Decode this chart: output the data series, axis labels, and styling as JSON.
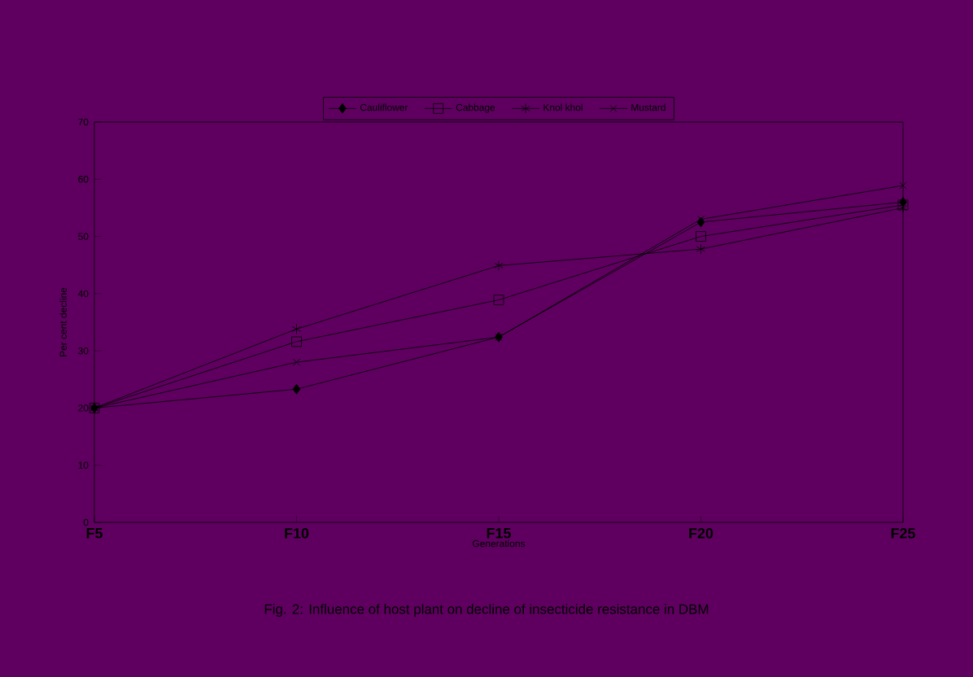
{
  "chart_data": {
    "type": "line",
    "title": "Fig. 2: Influence of host plant on decline of insecticide resistance in DBM",
    "xlabel": "Generations",
    "ylabel": "Per cent decline",
    "categories": [
      "F5",
      "F10",
      "F15",
      "F20",
      "F25"
    ],
    "series": [
      {
        "name": "Cauliflower",
        "color": "#000000",
        "marker": "diamond",
        "values": [
          20,
          23.3,
          32.4,
          52.5,
          56
        ]
      },
      {
        "name": "Cabbage",
        "color": "#000000",
        "marker": "square",
        "values": [
          20,
          31.6,
          38.9,
          50,
          55.5
        ]
      },
      {
        "name": "Knol khol",
        "color": "#000000",
        "marker": "cross",
        "values": [
          20,
          33.8,
          44.9,
          47.8,
          55
        ]
      },
      {
        "name": "Mustard",
        "color": "#000000",
        "marker": "cross",
        "values": [
          20,
          28,
          32.4,
          53,
          58.9
        ]
      }
    ],
    "ylim": [
      0,
      70
    ],
    "yticks": [
      0,
      10,
      20,
      30,
      40,
      50,
      60,
      70
    ],
    "grid": false,
    "legend": "top",
    "line_style": "solid"
  }
}
